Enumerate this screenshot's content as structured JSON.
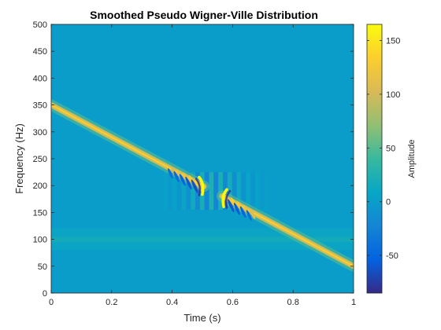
{
  "chart_data": {
    "type": "heatmap",
    "title": "Smoothed Pseudo Wigner-Ville Distribution",
    "xlabel": "Time (s)",
    "ylabel": "Frequency (Hz)",
    "xlim": [
      0,
      1
    ],
    "ylim": [
      0,
      500
    ],
    "xticks": [
      0,
      0.2,
      0.4,
      0.6,
      0.8,
      1
    ],
    "xtick_labels": [
      "0",
      "0.2",
      "0.4",
      "0.6",
      "0.8",
      "1"
    ],
    "yticks": [
      0,
      50,
      100,
      150,
      200,
      250,
      300,
      350,
      400,
      450,
      500
    ],
    "ytick_labels": [
      "0",
      "50",
      "100",
      "150",
      "200",
      "250",
      "300",
      "350",
      "400",
      "450",
      "500"
    ],
    "colormap": "parula",
    "background_value": 0,
    "colorbar": {
      "label": "Amplitude",
      "clim": [
        -85,
        165
      ],
      "ticks": [
        -50,
        0,
        50,
        100,
        150
      ],
      "tick_labels": [
        "-50",
        "0",
        "50",
        "100",
        "150"
      ]
    },
    "components": [
      {
        "name": "linear chirp",
        "t": [
          0,
          1
        ],
        "f": [
          350,
          50
        ],
        "peak_amplitude": 130
      }
    ],
    "interference": {
      "t": [
        0.45,
        0.62
      ],
      "f": [
        150,
        210
      ],
      "min_amplitude": -80,
      "max_amplitude": 165
    },
    "low_freq_band": {
      "f": 100,
      "amplitude": 40
    }
  }
}
